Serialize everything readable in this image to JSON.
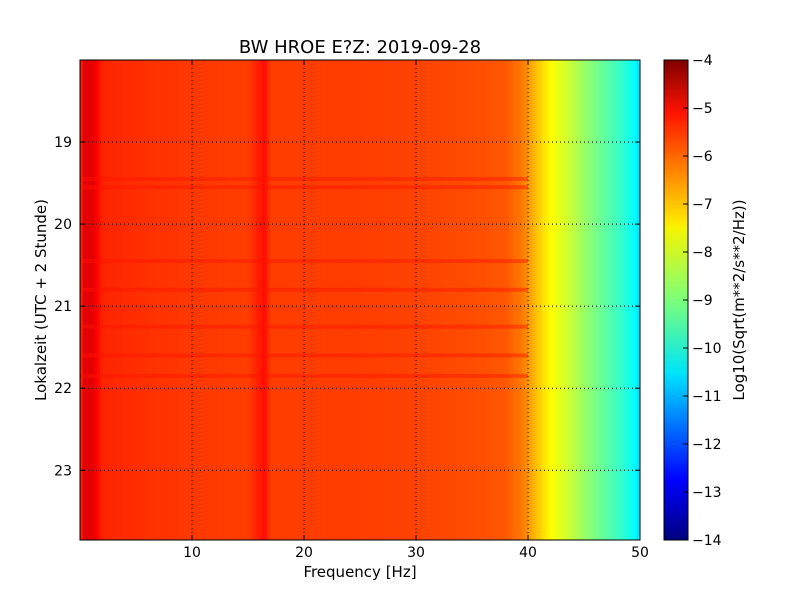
{
  "chart_data": {
    "type": "heatmap",
    "title": "BW HROE E?Z: 2019-09-28",
    "xlabel": "Frequency [Hz]",
    "ylabel": "Lokalzeit (UTC + 2 Stunde)",
    "xlim": [
      0,
      50
    ],
    "ylim": [
      23.85,
      18.0
    ],
    "y_inverted": true,
    "xticks": [
      10,
      20,
      30,
      40,
      50
    ],
    "yticks": [
      19,
      20,
      21,
      22,
      23
    ],
    "grid": true,
    "colorscale": "jet",
    "colorbar": {
      "label": "Log10(Sqrt(m**2/s**2/Hz))",
      "range": [
        -14,
        -4
      ],
      "ticks": [
        -4,
        -5,
        -6,
        -7,
        -8,
        -9,
        -10,
        -11,
        -12,
        -13,
        -14
      ]
    },
    "spectrum_profile": {
      "frequency_hz": [
        0,
        0.3,
        1.2,
        2,
        5,
        10,
        15,
        16.5,
        17,
        18,
        20,
        25,
        30,
        35,
        38,
        39.5,
        40.5,
        41.5,
        42.5,
        43.5,
        44.5,
        45.5,
        46.5,
        47.5,
        48.5,
        49.5,
        50
      ],
      "value": [
        -5.9,
        -4.95,
        -5.0,
        -5.6,
        -5.7,
        -5.8,
        -5.85,
        -5.35,
        -5.85,
        -5.85,
        -5.85,
        -5.85,
        -5.9,
        -6.0,
        -6.1,
        -6.45,
        -7.0,
        -7.5,
        -7.9,
        -8.2,
        -8.55,
        -8.9,
        -9.2,
        -9.5,
        -9.8,
        -10.25,
        -10.6
      ]
    },
    "noisy_hours": [
      19.45,
      19.55,
      20.45,
      20.8,
      21.25,
      21.6,
      21.85
    ]
  }
}
